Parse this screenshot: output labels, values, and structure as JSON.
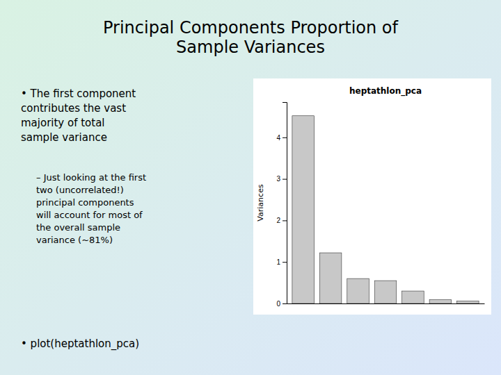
{
  "chart_data": {
    "type": "bar",
    "title": "heptathlon_pca",
    "categories": [
      null,
      null,
      null,
      null,
      null,
      null,
      null
    ],
    "values": [
      4.52,
      1.22,
      0.6,
      0.55,
      0.3,
      0.09,
      0.06
    ],
    "color": "#c8c8c8",
    "ylabel": "Variances",
    "ylim": [
      0,
      4.85
    ],
    "yticks": [
      0,
      1,
      2,
      3,
      4
    ],
    "tick_labels": "y",
    "annotations": [
      "Principal Components Proportion of\nSample Variances",
      "•  The first component\ncontributes the vast\nmajority of total\nsample variance",
      "–  Just looking at the first\ntwo (uncorrelated!)\nprincipal components\nwill account for most of\nthe overall sample\nvariance (~81%)",
      "•  plot(heptathlon_pca)"
    ]
  }
}
